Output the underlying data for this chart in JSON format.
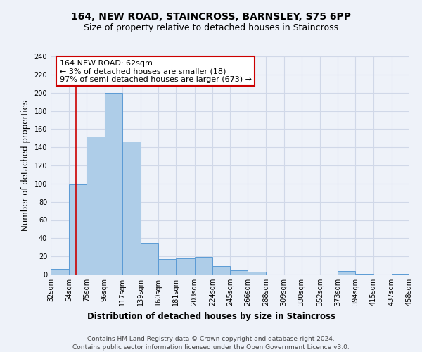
{
  "title": "164, NEW ROAD, STAINCROSS, BARNSLEY, S75 6PP",
  "subtitle": "Size of property relative to detached houses in Staincross",
  "xlabel": "Distribution of detached houses by size in Staincross",
  "ylabel": "Number of detached properties",
  "bin_edges": [
    32,
    54,
    75,
    96,
    117,
    139,
    160,
    181,
    203,
    224,
    245,
    266,
    288,
    309,
    330,
    352,
    373,
    394,
    415,
    437,
    458
  ],
  "counts": [
    6,
    99,
    152,
    200,
    146,
    35,
    17,
    18,
    19,
    9,
    5,
    3,
    0,
    0,
    0,
    0,
    4,
    1,
    0,
    1
  ],
  "bar_color": "#aecde8",
  "bar_edge_color": "#5b9bd5",
  "property_line_x": 62,
  "property_line_color": "#cc0000",
  "annotation_line1": "164 NEW ROAD: 62sqm",
  "annotation_line2": "← 3% of detached houses are smaller (18)",
  "annotation_line3": "97% of semi-detached houses are larger (673) →",
  "annotation_box_color": "#ffffff",
  "annotation_box_edge_color": "#cc0000",
  "tick_labels": [
    "32sqm",
    "54sqm",
    "75sqm",
    "96sqm",
    "117sqm",
    "139sqm",
    "160sqm",
    "181sqm",
    "203sqm",
    "224sqm",
    "245sqm",
    "266sqm",
    "288sqm",
    "309sqm",
    "330sqm",
    "352sqm",
    "373sqm",
    "394sqm",
    "415sqm",
    "437sqm",
    "458sqm"
  ],
  "ylim": [
    0,
    240
  ],
  "yticks": [
    0,
    20,
    40,
    60,
    80,
    100,
    120,
    140,
    160,
    180,
    200,
    220,
    240
  ],
  "footer_line1": "Contains HM Land Registry data © Crown copyright and database right 2024.",
  "footer_line2": "Contains public sector information licensed under the Open Government Licence v3.0.",
  "background_color": "#eef2f9",
  "grid_color": "#d0d8e8",
  "title_fontsize": 10,
  "subtitle_fontsize": 9,
  "axis_label_fontsize": 8.5,
  "tick_fontsize": 7,
  "annotation_fontsize": 8,
  "footer_fontsize": 6.5
}
